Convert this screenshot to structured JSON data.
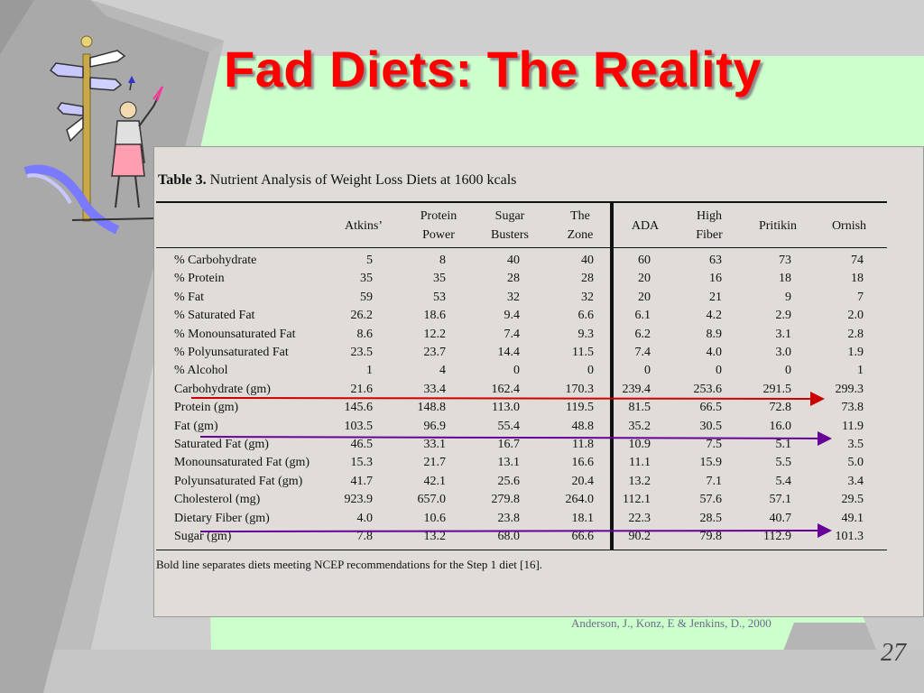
{
  "slide": {
    "title": "Fad Diets:  The Reality",
    "page_number": "27",
    "citation": "Anderson, J., Konz, E & Jenkins, D., 2000",
    "colors": {
      "title": "#ff0000",
      "background_green": "#ccffcc",
      "frame_gray": "#a9a9a9",
      "panel": "#e0dcd8"
    }
  },
  "clipart": {
    "icon": "signpost-woman-icon"
  },
  "table": {
    "caption_bold": "Table 3.",
    "caption_rest": " Nutrient Analysis of Weight Loss Diets at 1600 kcals",
    "columns": [
      {
        "line1": "Atkins’",
        "line2": ""
      },
      {
        "line1": "Protein",
        "line2": "Power"
      },
      {
        "line1": "Sugar",
        "line2": "Busters"
      },
      {
        "line1": "The",
        "line2": "Zone"
      },
      {
        "line1": "ADA",
        "line2": ""
      },
      {
        "line1": "High",
        "line2": "Fiber"
      },
      {
        "line1": "Pritikin",
        "line2": ""
      },
      {
        "line1": "Ornish",
        "line2": ""
      }
    ],
    "rows": [
      {
        "label": "% Carbohydrate",
        "values": [
          "5",
          "8",
          "40",
          "40",
          "60",
          "63",
          "73",
          "74"
        ]
      },
      {
        "label": "% Protein",
        "values": [
          "35",
          "35",
          "28",
          "28",
          "20",
          "16",
          "18",
          "18"
        ]
      },
      {
        "label": "% Fat",
        "values": [
          "59",
          "53",
          "32",
          "32",
          "20",
          "21",
          "9",
          "7"
        ]
      },
      {
        "label": "% Saturated Fat",
        "values": [
          "26.2",
          "18.6",
          "9.4",
          "6.6",
          "6.1",
          "4.2",
          "2.9",
          "2.0"
        ]
      },
      {
        "label": "% Monounsaturated Fat",
        "values": [
          "8.6",
          "12.2",
          "7.4",
          "9.3",
          "6.2",
          "8.9",
          "3.1",
          "2.8"
        ]
      },
      {
        "label": "% Polyunsaturated Fat",
        "values": [
          "23.5",
          "23.7",
          "14.4",
          "11.5",
          "7.4",
          "4.0",
          "3.0",
          "1.9"
        ]
      },
      {
        "label": "% Alcohol",
        "values": [
          "1",
          "4",
          "0",
          "0",
          "0",
          "0",
          "0",
          "1"
        ]
      },
      {
        "label": "Carbohydrate (gm)",
        "values": [
          "21.6",
          "33.4",
          "162.4",
          "170.3",
          "239.4",
          "253.6",
          "291.5",
          "299.3"
        ]
      },
      {
        "label": "Protein (gm)",
        "values": [
          "145.6",
          "148.8",
          "113.0",
          "119.5",
          "81.5",
          "66.5",
          "72.8",
          "73.8"
        ]
      },
      {
        "label": "Fat (gm)",
        "values": [
          "103.5",
          "96.9",
          "55.4",
          "48.8",
          "35.2",
          "30.5",
          "16.0",
          "11.9"
        ]
      },
      {
        "label": "Saturated Fat (gm)",
        "values": [
          "46.5",
          "33.1",
          "16.7",
          "11.8",
          "10.9",
          "7.5",
          "5.1",
          "3.5"
        ]
      },
      {
        "label": "Monounsaturated Fat (gm)",
        "values": [
          "15.3",
          "21.7",
          "13.1",
          "16.6",
          "11.1",
          "15.9",
          "5.5",
          "5.0"
        ]
      },
      {
        "label": "Polyunsaturated Fat (gm)",
        "values": [
          "41.7",
          "42.1",
          "25.6",
          "20.4",
          "13.2",
          "7.1",
          "5.4",
          "3.4"
        ]
      },
      {
        "label": "Cholesterol (mg)",
        "values": [
          "923.9",
          "657.0",
          "279.8",
          "264.0",
          "112.1",
          "57.6",
          "57.1",
          "29.5"
        ]
      },
      {
        "label": "Dietary Fiber (gm)",
        "values": [
          "4.0",
          "10.6",
          "23.8",
          "18.1",
          "22.3",
          "28.5",
          "40.7",
          "49.1"
        ]
      },
      {
        "label": "Sugar (gm)",
        "values": [
          "7.8",
          "13.2",
          "68.0",
          "66.6",
          "90.2",
          "79.8",
          "112.9",
          "101.3"
        ]
      }
    ],
    "footnote": "Bold line separates diets meeting NCEP recommendations for the Step 1 diet [16]."
  },
  "annotations": [
    {
      "name": "carbohydrate-arrow",
      "row": "Carbohydrate (gm)",
      "color": "#cc0000"
    },
    {
      "name": "fat-arrow",
      "row": "Fat (gm)",
      "color": "#660099"
    },
    {
      "name": "sugar-arrow",
      "row": "Sugar (gm)",
      "color": "#660099"
    }
  ]
}
